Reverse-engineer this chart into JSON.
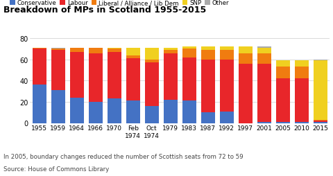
{
  "title": "Breakdown of MPs in Scotland 1955-2015",
  "years": [
    "1955",
    "1959",
    "1964",
    "1966",
    "1970",
    "Feb\n1974",
    "Oct\n1974",
    "1979",
    "1983",
    "1987",
    "1992",
    "1997",
    "2001",
    "2005",
    "2010",
    "2015"
  ],
  "conservative": [
    36,
    31,
    24,
    20,
    23,
    21,
    16,
    22,
    21,
    10,
    11,
    0,
    1,
    1,
    1,
    1
  ],
  "labour": [
    34,
    38,
    43,
    46,
    44,
    40,
    41,
    44,
    41,
    50,
    49,
    56,
    55,
    41,
    41,
    1
  ],
  "lib": [
    1,
    1,
    4,
    5,
    3,
    3,
    3,
    3,
    8,
    9,
    9,
    10,
    10,
    11,
    11,
    1
  ],
  "snp": [
    0,
    0,
    0,
    0,
    1,
    7,
    11,
    2,
    2,
    3,
    3,
    6,
    5,
    6,
    6,
    56
  ],
  "other": [
    0,
    1,
    0,
    0,
    0,
    0,
    0,
    0,
    0,
    0,
    0,
    0,
    1,
    0,
    0,
    1
  ],
  "colors": {
    "conservative": "#4472c4",
    "labour": "#e8262a",
    "lib": "#f07c10",
    "snp": "#f0d020",
    "other": "#aaaaaa"
  },
  "ylim": [
    0,
    80
  ],
  "yticks": [
    0,
    20,
    40,
    60,
    80
  ],
  "footnote1": "In 2005, boundary changes reduced the number of Scottish seats from 72 to 59",
  "footnote2": "Source: House of Commons Library",
  "bg_color": "#ffffff"
}
